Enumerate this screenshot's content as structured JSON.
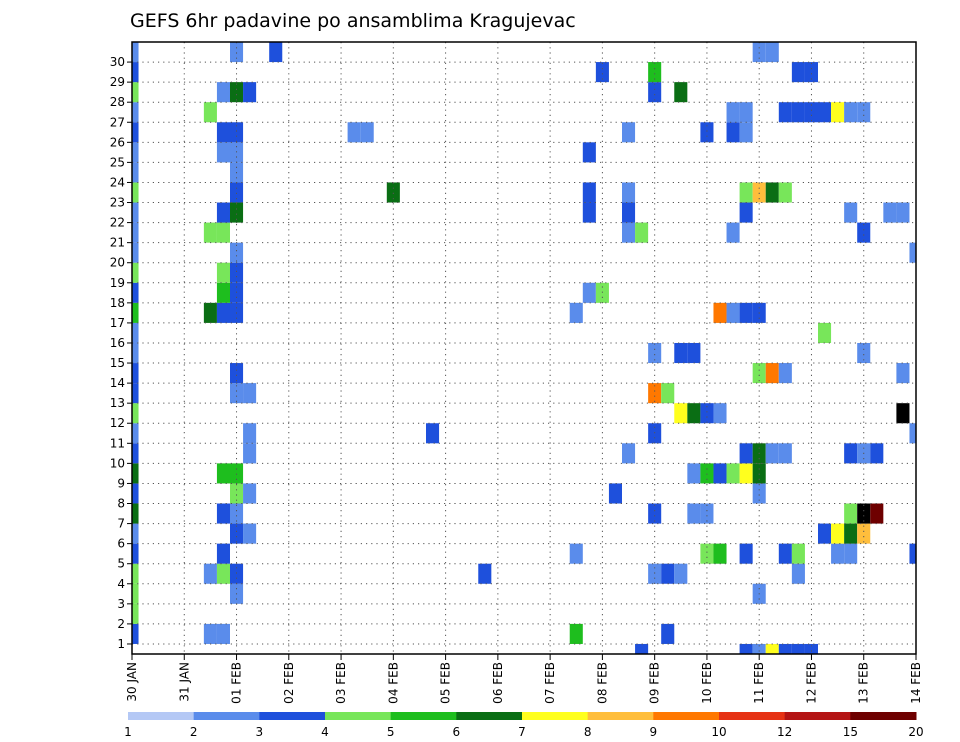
{
  "chart_data": {
    "type": "heatmap",
    "title": "GEFS 6hr padavine po ansamblima Kragujevac",
    "xlabel": "",
    "ylabel": "",
    "x_ticks": [
      "30 JAN",
      "31 JAN",
      "01 FEB",
      "02 FEB",
      "03 FEB",
      "04 FEB",
      "05 FEB",
      "06 FEB",
      "07 FEB",
      "08 FEB",
      "09 FEB",
      "10 FEB",
      "11 FEB",
      "12 FEB",
      "13 FEB",
      "14 FEB"
    ],
    "xlim": [
      0,
      15
    ],
    "x_unit": "days from 30 JAN 00Z",
    "y_ticks": [
      1,
      2,
      3,
      4,
      5,
      6,
      7,
      8,
      9,
      10,
      11,
      12,
      13,
      14,
      15,
      16,
      17,
      18,
      19,
      20,
      21,
      22,
      23,
      24,
      25,
      26,
      27,
      28,
      29,
      30
    ],
    "ylim": [
      0,
      30
    ],
    "grid": true,
    "colorbar": {
      "labels": [
        "1",
        "2",
        "3",
        "4",
        "5",
        "6",
        "7",
        "8",
        "9",
        "10",
        "12",
        "15",
        "20"
      ],
      "colors": [
        "#b4c8f5",
        "#5a8ceb",
        "#1e50dc",
        "#78e65a",
        "#1ebe1e",
        "#0a6e14",
        "#ffff1e",
        "#ffbe3c",
        "#ff7800",
        "#e63214",
        "#b41414",
        "#6e0000"
      ]
    },
    "cells": [
      [
        0.0,
        0,
        2
      ],
      [
        0.0,
        1,
        3
      ],
      [
        0.0,
        2,
        3
      ],
      [
        0.0,
        3,
        3
      ],
      [
        0.0,
        4,
        2
      ],
      [
        0.0,
        5,
        1
      ],
      [
        0.0,
        6,
        5
      ],
      [
        0.0,
        7,
        2
      ],
      [
        0.0,
        8,
        5
      ],
      [
        0.0,
        9,
        2
      ],
      [
        0.0,
        10,
        1
      ],
      [
        0.0,
        11,
        3
      ],
      [
        0.0,
        12,
        2
      ],
      [
        0.0,
        13,
        2
      ],
      [
        0.0,
        14,
        1
      ],
      [
        0.0,
        15,
        1
      ],
      [
        0.0,
        16,
        4
      ],
      [
        0.0,
        17,
        2
      ],
      [
        0.0,
        18,
        3
      ],
      [
        0.0,
        19,
        1
      ],
      [
        0.0,
        20,
        1
      ],
      [
        0.0,
        21,
        1
      ],
      [
        0.0,
        22,
        3
      ],
      [
        0.0,
        23,
        1
      ],
      [
        0.0,
        24,
        1
      ],
      [
        0.0,
        25,
        2
      ],
      [
        0.0,
        26,
        1
      ],
      [
        0.0,
        27,
        3
      ],
      [
        0.0,
        28,
        2
      ],
      [
        0.0,
        29,
        1
      ],
      [
        1.5,
        0,
        1
      ],
      [
        1.5,
        3,
        1
      ],
      [
        1.5,
        16,
        5
      ],
      [
        1.5,
        20,
        3
      ],
      [
        1.5,
        26,
        3
      ],
      [
        1.75,
        0,
        1
      ],
      [
        1.75,
        3,
        3
      ],
      [
        1.75,
        4,
        2
      ],
      [
        1.75,
        6,
        2
      ],
      [
        1.75,
        8,
        4
      ],
      [
        1.75,
        16,
        2
      ],
      [
        1.75,
        17,
        4
      ],
      [
        1.75,
        18,
        3
      ],
      [
        1.75,
        20,
        3
      ],
      [
        1.75,
        21,
        2
      ],
      [
        1.75,
        24,
        1
      ],
      [
        1.75,
        25,
        2
      ],
      [
        1.75,
        27,
        1
      ],
      [
        2.0,
        2,
        1
      ],
      [
        2.0,
        3,
        2
      ],
      [
        2.0,
        5,
        2
      ],
      [
        2.0,
        6,
        1
      ],
      [
        2.0,
        7,
        3
      ],
      [
        2.0,
        8,
        4
      ],
      [
        2.0,
        12,
        1
      ],
      [
        2.0,
        13,
        2
      ],
      [
        2.0,
        16,
        2
      ],
      [
        2.0,
        17,
        2
      ],
      [
        2.0,
        18,
        2
      ],
      [
        2.0,
        19,
        1
      ],
      [
        2.0,
        21,
        5
      ],
      [
        2.0,
        22,
        2
      ],
      [
        2.0,
        23,
        1
      ],
      [
        2.0,
        24,
        1
      ],
      [
        2.0,
        25,
        2
      ],
      [
        2.0,
        27,
        5
      ],
      [
        2.0,
        29,
        1
      ],
      [
        2.25,
        5,
        1
      ],
      [
        2.25,
        7,
        1
      ],
      [
        2.25,
        9,
        1
      ],
      [
        2.25,
        10,
        1
      ],
      [
        2.25,
        12,
        1
      ],
      [
        2.25,
        27,
        2
      ],
      [
        2.75,
        29,
        2
      ],
      [
        4.25,
        25,
        1
      ],
      [
        4.5,
        25,
        1
      ],
      [
        5.0,
        22,
        5
      ],
      [
        5.75,
        10,
        2
      ],
      [
        6.75,
        3,
        2
      ],
      [
        8.5,
        0,
        4
      ],
      [
        8.5,
        4,
        1
      ],
      [
        8.5,
        16,
        1
      ],
      [
        8.75,
        17,
        1
      ],
      [
        8.75,
        21,
        2
      ],
      [
        8.75,
        22,
        2
      ],
      [
        8.75,
        24,
        2
      ],
      [
        9.0,
        17,
        3
      ],
      [
        9.0,
        28,
        2
      ],
      [
        9.25,
        7,
        2
      ],
      [
        9.5,
        9,
        1
      ],
      [
        9.5,
        20,
        1
      ],
      [
        9.5,
        21,
        2
      ],
      [
        9.5,
        22,
        1
      ],
      [
        9.5,
        25,
        1
      ],
      [
        9.75,
        -1,
        2
      ],
      [
        9.75,
        20,
        3
      ],
      [
        10.0,
        3,
        1
      ],
      [
        10.0,
        6,
        2
      ],
      [
        10.0,
        10,
        2
      ],
      [
        10.0,
        12,
        8
      ],
      [
        10.0,
        14,
        1
      ],
      [
        10.0,
        27,
        2
      ],
      [
        10.0,
        28,
        4
      ],
      [
        10.25,
        0,
        2
      ],
      [
        10.25,
        3,
        2
      ],
      [
        10.25,
        12,
        3
      ],
      [
        10.5,
        3,
        1
      ],
      [
        10.5,
        11,
        6
      ],
      [
        10.5,
        14,
        2
      ],
      [
        10.5,
        27,
        5
      ],
      [
        10.75,
        6,
        1
      ],
      [
        10.75,
        8,
        1
      ],
      [
        10.75,
        11,
        5
      ],
      [
        10.75,
        14,
        2
      ],
      [
        11.0,
        4,
        3
      ],
      [
        11.0,
        6,
        1
      ],
      [
        11.0,
        8,
        4
      ],
      [
        11.0,
        11,
        2
      ],
      [
        11.0,
        25,
        2
      ],
      [
        11.25,
        4,
        4
      ],
      [
        11.25,
        8,
        2
      ],
      [
        11.25,
        11,
        1
      ],
      [
        11.25,
        16,
        8
      ],
      [
        11.5,
        8,
        3
      ],
      [
        11.5,
        16,
        1
      ],
      [
        11.5,
        20,
        1
      ],
      [
        11.5,
        25,
        2
      ],
      [
        11.5,
        26,
        1
      ],
      [
        11.75,
        -1,
        2
      ],
      [
        11.75,
        4,
        2
      ],
      [
        11.75,
        8,
        6
      ],
      [
        11.75,
        9,
        2
      ],
      [
        11.75,
        16,
        2
      ],
      [
        11.75,
        21,
        2
      ],
      [
        11.75,
        22,
        3
      ],
      [
        11.75,
        25,
        1
      ],
      [
        11.75,
        26,
        1
      ],
      [
        12.0,
        -1,
        1
      ],
      [
        12.0,
        2,
        1
      ],
      [
        12.0,
        7,
        1
      ],
      [
        12.0,
        8,
        5
      ],
      [
        12.0,
        9,
        5
      ],
      [
        12.0,
        13,
        3
      ],
      [
        12.0,
        16,
        2
      ],
      [
        12.0,
        22,
        7
      ],
      [
        12.0,
        29,
        1
      ],
      [
        12.25,
        -1,
        6
      ],
      [
        12.25,
        9,
        1
      ],
      [
        12.25,
        13,
        8
      ],
      [
        12.25,
        22,
        5
      ],
      [
        12.25,
        29,
        1
      ],
      [
        12.5,
        -1,
        2
      ],
      [
        12.5,
        4,
        2
      ],
      [
        12.5,
        9,
        1
      ],
      [
        12.5,
        13,
        1
      ],
      [
        12.5,
        22,
        3
      ],
      [
        12.5,
        26,
        2
      ],
      [
        12.75,
        -1,
        2
      ],
      [
        12.75,
        3,
        1
      ],
      [
        12.75,
        4,
        3
      ],
      [
        12.75,
        26,
        2
      ],
      [
        12.75,
        28,
        2
      ],
      [
        13.0,
        -1,
        2
      ],
      [
        13.0,
        26,
        2
      ],
      [
        13.0,
        28,
        2
      ],
      [
        13.25,
        5,
        2
      ],
      [
        13.25,
        15,
        3
      ],
      [
        13.25,
        26,
        2
      ],
      [
        13.5,
        4,
        1
      ],
      [
        13.5,
        5,
        6
      ],
      [
        13.5,
        26,
        6
      ],
      [
        13.75,
        4,
        1
      ],
      [
        13.75,
        5,
        5
      ],
      [
        13.75,
        6,
        3
      ],
      [
        13.75,
        9,
        2
      ],
      [
        13.75,
        21,
        1
      ],
      [
        13.75,
        26,
        1
      ],
      [
        14.0,
        5,
        7
      ],
      [
        14.0,
        6,
        12
      ],
      [
        14.0,
        9,
        1
      ],
      [
        14.0,
        14,
        1
      ],
      [
        14.0,
        20,
        2
      ],
      [
        14.0,
        26,
        1
      ],
      [
        14.25,
        6,
        11
      ],
      [
        14.25,
        9,
        2
      ],
      [
        14.5,
        21,
        1
      ],
      [
        14.75,
        11,
        12
      ],
      [
        14.75,
        13,
        1
      ],
      [
        14.75,
        21,
        1
      ],
      [
        15.0,
        4,
        2
      ],
      [
        15.0,
        10,
        1
      ],
      [
        15.0,
        19,
        1
      ]
    ]
  }
}
